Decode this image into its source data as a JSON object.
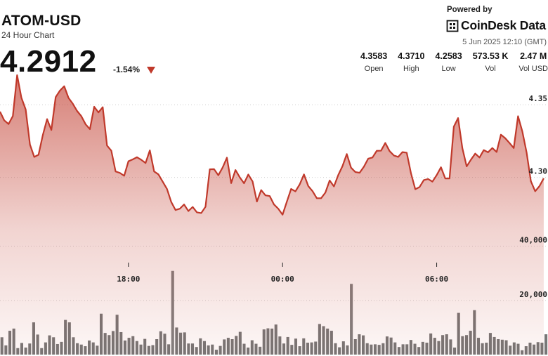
{
  "header": {
    "symbol": "ATOM-USD",
    "subtitle": "24 Hour Chart",
    "price": "4.2912",
    "change": "-1.54%",
    "powered_by": "Powered by",
    "brand": "CoinDesk Data",
    "timestamp": "5 Jun 2025 12:10 (GMT)"
  },
  "stats": [
    {
      "value": "4.3583",
      "label": "Open"
    },
    {
      "value": "4.3710",
      "label": "High"
    },
    {
      "value": "4.2583",
      "label": "Low"
    },
    {
      "value": "573.53 K",
      "label": "Vol"
    },
    {
      "value": "2.47 M",
      "label": "Vol USD"
    }
  ],
  "colors": {
    "line": "#c0392b",
    "area_top": "#c0392b",
    "volume_bar": "#5f5f5f",
    "volume_bar_highlight": "#7a7a7a",
    "down_arrow": "#c0392b"
  },
  "icons": {
    "brand": "coindesk-logo-icon",
    "change": "down-triangle-icon"
  },
  "chart_data": [
    {
      "type": "area",
      "series": [
        {
          "values": [
            4.3452,
            4.3392,
            4.3367,
            4.3422,
            4.3703,
            4.3548,
            4.3467,
            4.3226,
            4.3141,
            4.3156,
            4.3291,
            4.3401,
            4.3326,
            4.3552,
            4.3597,
            4.3627,
            4.3547,
            4.3507,
            4.3457,
            4.3421,
            4.3365,
            4.3332,
            4.3486,
            4.3447,
            4.3483,
            4.3219,
            4.3184,
            4.3041,
            4.3031,
            4.3011,
            4.3111,
            4.3124,
            4.3139,
            4.3121,
            4.3099,
            4.3186,
            4.3041,
            4.3021,
            4.2971,
            4.2921,
            4.2831,
            4.2776,
            4.2785,
            4.2814,
            4.2769,
            4.2797,
            4.276,
            4.2755,
            4.2798,
            4.3056,
            4.3057,
            4.3015,
            4.3068,
            4.3136,
            4.2961,
            4.3051,
            4.3001,
            4.296,
            4.302,
            4.2972,
            4.2834,
            4.2913,
            4.2877,
            4.2872,
            4.2814,
            4.2785,
            4.2744,
            4.2833,
            4.2921,
            4.2904,
            4.2952,
            4.3021,
            4.2941,
            4.2906,
            4.2857,
            4.2857,
            4.2896,
            4.2979,
            4.2938,
            4.3016,
            4.3078,
            4.3161,
            4.3067,
            4.3037,
            4.3032,
            4.3074,
            4.3129,
            4.3137,
            4.3183,
            4.3184,
            4.3237,
            4.3181,
            4.3151,
            4.3141,
            4.3174,
            4.317,
            4.3028,
            4.2919,
            4.2934,
            4.2982,
            4.2989,
            4.2971,
            4.3016,
            4.307,
            4.2993,
            4.2993,
            4.3349,
            4.3408,
            4.3201,
            4.3076,
            4.3122,
            4.3164,
            4.3137,
            4.3188,
            4.3173,
            4.3202,
            4.3175,
            4.3294,
            4.327,
            4.3237,
            4.3202,
            4.3421,
            4.3317,
            4.3172,
            4.2974,
            4.2905,
            4.294,
            4.2994
          ],
          "x_range": [
            0,
            128
          ]
        }
      ],
      "xticks": [
        {
          "label": "18:00",
          "x": 30
        },
        {
          "label": "00:00",
          "x": 66
        },
        {
          "label": "06:00",
          "x": 102
        }
      ],
      "yticks": [
        4.3,
        4.35
      ],
      "y_range": [
        4.2482,
        4.3708
      ],
      "grid": "dotted horizontal"
    },
    {
      "type": "bar",
      "series": [
        {
          "values": [
            6400,
            3400,
            8800,
            9600,
            2400,
            4300,
            2600,
            4100,
            11900,
            7400,
            2400,
            4500,
            7100,
            6400,
            3900,
            4700,
            12800,
            11900,
            6400,
            4200,
            3700,
            3100,
            5200,
            4500,
            3300,
            15100,
            8000,
            7200,
            8700,
            14700,
            8300,
            5200,
            6200,
            6800,
            5000,
            3700,
            5800,
            3200,
            3500,
            5700,
            8600,
            7700,
            3800,
            30900,
            10000,
            8100,
            8200,
            4100,
            4100,
            2800,
            6000,
            5000,
            3400,
            3700,
            1800,
            3200,
            5600,
            6200,
            5700,
            6900,
            8400,
            4000,
            2600,
            5300,
            4000,
            2900,
            9300,
            9700,
            9600,
            11100,
            6700,
            4100,
            6500,
            3600,
            5900,
            3100,
            6000,
            4400,
            4500,
            4800,
            11300,
            10500,
            9600,
            8800,
            4200,
            2700,
            4900,
            3400,
            26100,
            5700,
            7500,
            7100,
            4200,
            3700,
            3800,
            3600,
            4200,
            6700,
            6300,
            4500,
            2800,
            3800,
            3800,
            5400,
            4000,
            2800,
            4700,
            4400,
            7800,
            6200,
            5000,
            7200,
            7500,
            5600,
            2600,
            15400,
            6800,
            7200,
            8800,
            16400,
            6200,
            4200,
            4400,
            8000,
            6500,
            5700,
            5500,
            5300,
            3300,
            4500,
            4000,
            1600,
            3100,
            4400,
            3700,
            4600,
            4400,
            7500
          ],
          "x_range": [
            0,
            138
          ]
        }
      ],
      "yticks": [
        20000,
        40000
      ],
      "y_range": [
        0,
        78000
      ]
    }
  ]
}
